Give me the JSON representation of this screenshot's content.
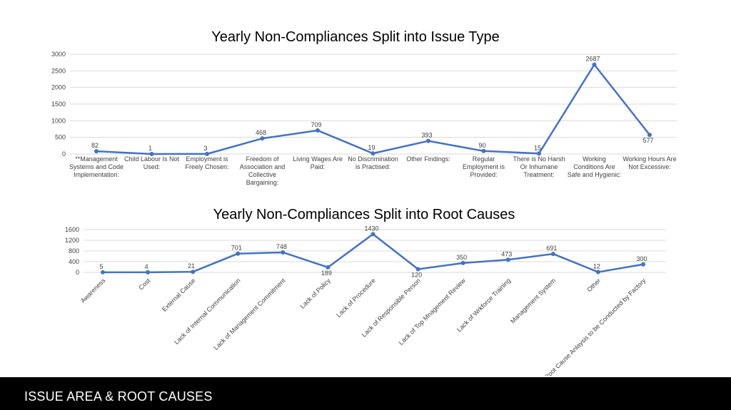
{
  "footer": {
    "title": "ISSUE AREA & ROOT CAUSES"
  },
  "colors": {
    "line": "#4472C4",
    "grid": "#D9D9D9",
    "text": "#404040",
    "title": "#000000"
  },
  "chart_data": [
    {
      "type": "line",
      "title": "Yearly Non-Compliances Split into Issue Type",
      "categories": [
        "**Management Systems and Code Implementation:",
        "Child Labour Is Not Used:",
        "Employment is Freely Chosen:",
        "Freedom of Association and Collective Bargaining:",
        "Living Wages Are Paid:",
        "No Discrimination is Practised:",
        "Other Findings:",
        "Regular Employment is Provided:",
        "There is No Harsh Or Inhumane Treatment:",
        "Working Conditions Are Safe and Hygienic:",
        "Working Hours Are Not Excessive:"
      ],
      "category_lines": [
        [
          "**Management",
          "Systems and Code",
          "Implementation:"
        ],
        [
          "Child Labour Is Not",
          "Used:"
        ],
        [
          "Employment is",
          "Freely Chosen:"
        ],
        [
          "Freedom of",
          "Association and",
          "Collective",
          "Bargaining:"
        ],
        [
          "Living Wages Are",
          "Paid:"
        ],
        [
          "No Discrimination",
          "is Practised:"
        ],
        [
          "Other Findings:"
        ],
        [
          "Regular",
          "Employment is",
          "Provided:"
        ],
        [
          "There is No Harsh",
          "Or Inhumane",
          "Treatment:"
        ],
        [
          "Working",
          "Conditions Are",
          "Safe and Hygienic:"
        ],
        [
          "Working Hours Are",
          "Not Excessive:"
        ]
      ],
      "values": [
        82,
        1,
        3,
        468,
        709,
        19,
        393,
        90,
        15,
        2687,
        577
      ],
      "data_labels": [
        "82",
        "1",
        "3",
        "468",
        "709",
        "19",
        "393",
        "90",
        "15",
        "2687",
        "577"
      ],
      "yticks": [
        0,
        500,
        1000,
        1500,
        2000,
        2500,
        3000
      ],
      "ylim": [
        0,
        3000
      ],
      "grid": true,
      "legend": "none"
    },
    {
      "type": "line",
      "title": "Yearly Non-Compliances Split into Root Causes",
      "categories": [
        "Awareness",
        "Cost",
        "External Cause",
        "Lack of Internal Communication",
        "Lack of Management Commitment",
        "Lack of Policy",
        "Lack of Procedure",
        "Lack of Responsible Person",
        "Lack of Top Mnagement Review",
        "Lack of Wrkforce Training",
        "Management System",
        "Other",
        "Root Cause Anlaysis to be Conducted by Factory"
      ],
      "values": [
        5,
        4,
        21,
        701,
        748,
        189,
        1430,
        120,
        350,
        473,
        691,
        12,
        300
      ],
      "data_labels": [
        "5",
        "4",
        "21",
        "701",
        "748",
        "189",
        "1430",
        "120",
        "350",
        "473",
        "691",
        "12",
        "300"
      ],
      "yticks": [
        0,
        400,
        800,
        1200,
        1600
      ],
      "ylim": [
        0,
        1600
      ],
      "grid": true,
      "legend": "none"
    }
  ]
}
